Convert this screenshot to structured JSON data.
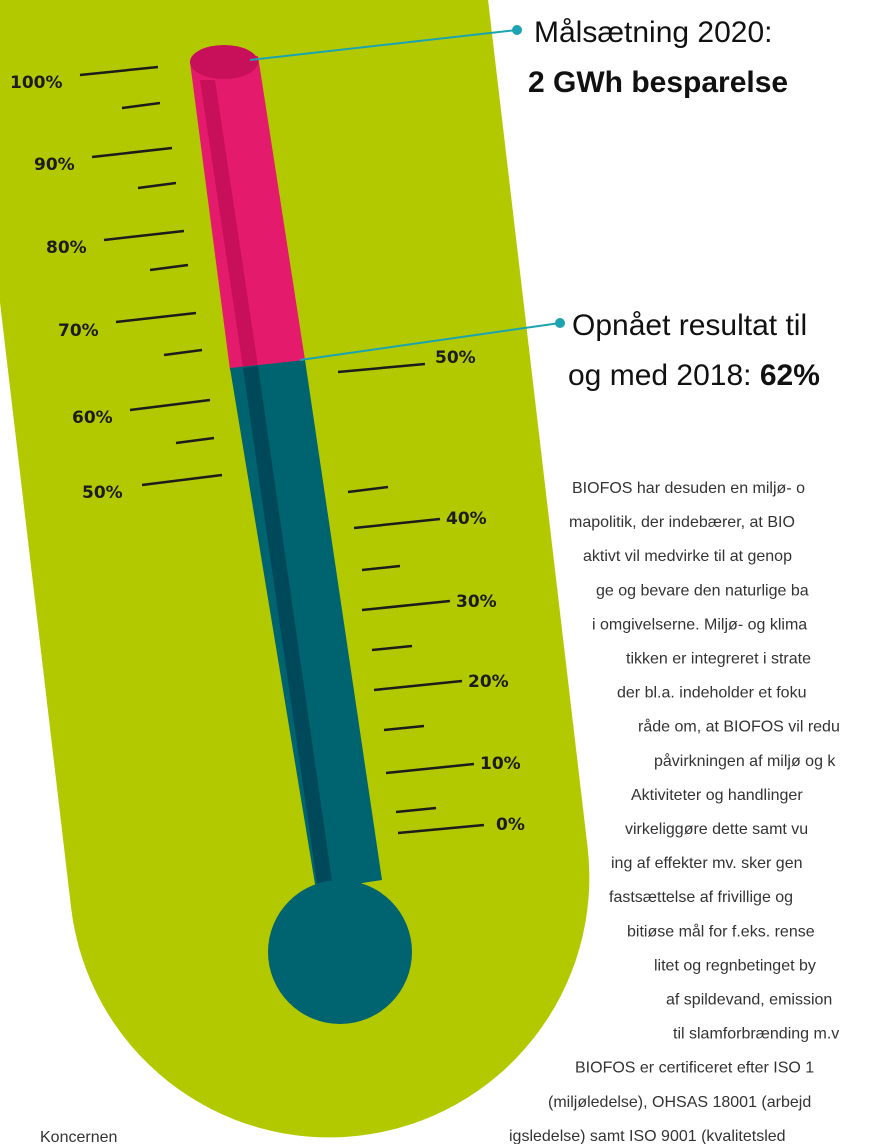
{
  "thermometer": {
    "left_scale": [
      "100%",
      "90%",
      "80%",
      "70%",
      "60%",
      "50%"
    ],
    "right_scale": [
      "50%",
      "40%",
      "30%",
      "20%",
      "10%",
      "0%"
    ]
  },
  "callouts": [
    {
      "line1": "Målsætning 2020:",
      "line2": "2 GWh besparelse"
    },
    {
      "line1": "Opnået resultat til",
      "line2": "og med 2018:",
      "highlight": "62%"
    }
  ],
  "paragraph": [
    "BIOFOS har desuden en miljø- o",
    "mapolitik, der indebærer, at BIO",
    "aktivt vil medvirke til at genop",
    "ge og bevare den naturlige ba",
    "i omgivelserne. Miljø- og klima",
    "tikken er integreret i strate",
    "der bl.a. indeholder et foku",
    "råde om, at BIOFOS vil redu",
    "påvirkningen af miljø og k",
    "Aktiviteter og handlinger",
    "virkeliggøre dette samt vu",
    "ing af effekter mv. sker gen",
    "fastsættelse af frivillige og",
    "bitiøse mål for f.eks. rense",
    "litet og regnbetinget by",
    "af spildevand, emission",
    "til slamforbrænding m.v",
    "BIOFOS er certificeret efter ISO 1",
    "(miljøledelse), OHSAS 18001 (arbejd",
    "igsledelse) samt ISO 9001 (kvalitetsled"
  ],
  "footer": "Koncernen"
}
